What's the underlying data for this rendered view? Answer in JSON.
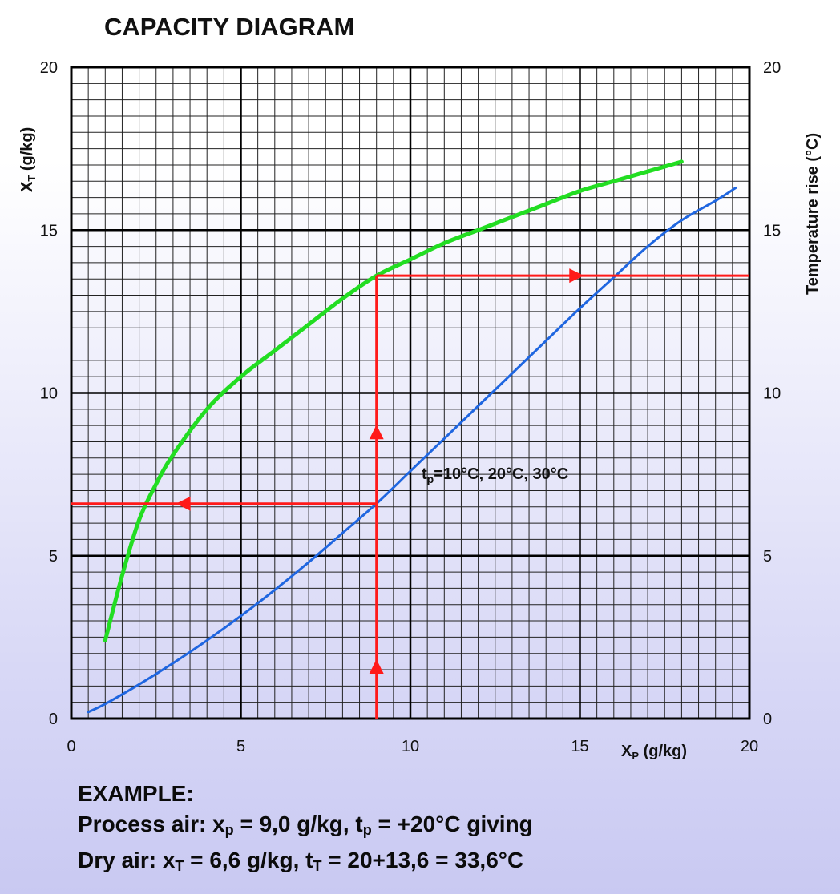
{
  "chart_data": {
    "type": "line",
    "title": "CAPACITY DIAGRAM",
    "xlabel": {
      "main": "X",
      "sub": "P",
      "unit": " (g/kg)"
    },
    "ylabel_left": {
      "main": "X",
      "sub": "T",
      "unit": " (g/kg)"
    },
    "ylabel_right": "Temperature rise (°C)",
    "xlim": [
      0,
      20
    ],
    "ylim": [
      0,
      20
    ],
    "x_ticks": [
      "0",
      "5",
      "10",
      "15",
      "20"
    ],
    "y_ticks": [
      "0",
      "5",
      "10",
      "15",
      "20"
    ],
    "grid": true,
    "series": [
      {
        "color": "#22dd22",
        "x": [
          1,
          1.5,
          2,
          2.5,
          3,
          4,
          5,
          6,
          7,
          8,
          9,
          10,
          11,
          12,
          13,
          14,
          15,
          16,
          17,
          18
        ],
        "y": [
          2.4,
          4.4,
          6.1,
          7.2,
          8.1,
          9.5,
          10.5,
          11.3,
          12.1,
          12.9,
          13.6,
          14.1,
          14.6,
          15.0,
          15.4,
          15.8,
          16.2,
          16.5,
          16.8,
          17.1
        ]
      },
      {
        "color": "#1f66e0",
        "x": [
          0.5,
          1,
          2,
          3,
          4,
          5,
          6,
          7,
          8,
          9,
          10,
          11,
          12,
          13,
          14,
          15,
          16,
          17,
          18,
          19,
          19.6
        ],
        "y": [
          0.2,
          0.45,
          1.05,
          1.7,
          2.4,
          3.15,
          3.95,
          4.8,
          5.7,
          6.6,
          7.6,
          8.6,
          9.6,
          10.6,
          11.6,
          12.6,
          13.55,
          14.5,
          15.3,
          15.9,
          16.3
        ]
      }
    ],
    "example_lines": [
      {
        "color": "#ff1a1a",
        "x": [
          9,
          9
        ],
        "y": [
          0,
          13.6
        ]
      },
      {
        "color": "#ff1a1a",
        "x": [
          9,
          20
        ],
        "y": [
          13.6,
          13.6
        ]
      },
      {
        "color": "#ff1a1a",
        "x": [
          9,
          0
        ],
        "y": [
          6.6,
          6.6
        ]
      }
    ],
    "annotation": {
      "t": "t",
      "sub": "p",
      "rest": "=10°C, 20°C, 30°C"
    }
  },
  "example": {
    "heading": "EXAMPLE:",
    "line1": {
      "a": "Process air: x",
      "a_sub": "p",
      "b": " = 9,0 g/kg, t",
      "b_sub": "p",
      "c": " = +20°C giving"
    },
    "line2": {
      "a": "Dry air: x",
      "a_sub": "T",
      "b": " = 6,6 g/kg, t",
      "b_sub": "T",
      "c": " = 20+13,6 = 33,6°C"
    }
  }
}
